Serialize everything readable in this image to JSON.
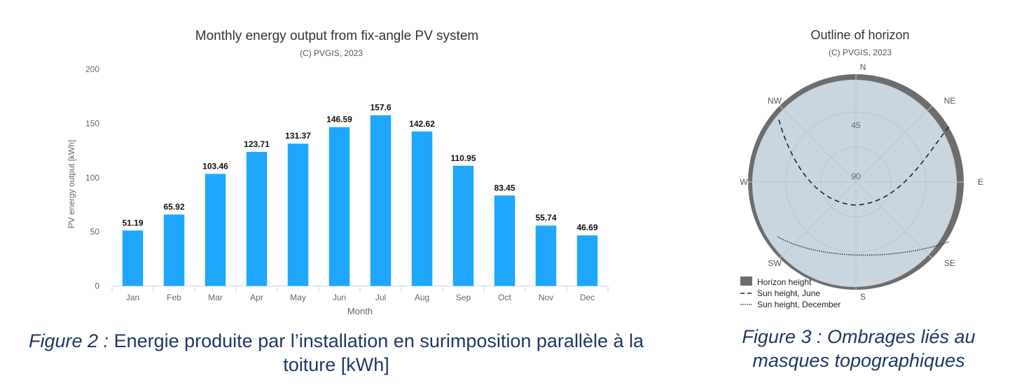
{
  "chart_data": [
    {
      "type": "bar",
      "title": "Monthly energy output from fix-angle PV system",
      "subtitle": "(C) PVGIS, 2023",
      "xlabel": "Month",
      "ylabel": "PV energy output [kWh]",
      "ylim": [
        0,
        200
      ],
      "yticks": [
        0,
        50,
        100,
        150,
        200
      ],
      "categories": [
        "Jan",
        "Feb",
        "Mar",
        "Apr",
        "May",
        "Jun",
        "Jul",
        "Aug",
        "Sep",
        "Oct",
        "Nov",
        "Dec"
      ],
      "values": [
        51.19,
        65.92,
        103.46,
        123.71,
        131.37,
        146.59,
        157.6,
        142.62,
        110.95,
        83.45,
        55.74,
        46.69
      ],
      "value_labels": [
        "51.19",
        "65.92",
        "103.46",
        "123.71",
        "131.37",
        "146.59",
        "157.6",
        "142.62",
        "110.95",
        "83.45",
        "55.74",
        "46.69"
      ],
      "bar_color": "#1ea7fd",
      "grid": false
    },
    {
      "type": "polar",
      "title": "Outline of horizon",
      "subtitle": "(C) PVGIS, 2023",
      "directions": [
        "N",
        "NE",
        "E",
        "SE",
        "S",
        "SW",
        "W",
        "NW"
      ],
      "radial_ticks": [
        "45",
        "90"
      ],
      "legend": [
        {
          "label": "Horizon height",
          "style": "filled"
        },
        {
          "label": "Sun height, June",
          "style": "dashed"
        },
        {
          "label": "Sun height, December",
          "style": "dotted"
        }
      ],
      "legend_position": "bottom-left",
      "horizon_color": "#6d6d6d",
      "sky_color": "#c9d6df"
    }
  ],
  "captions": {
    "left_prefix": "Figure 2 :",
    "left_text": " Energie produite par l’installation en surimposition parallèle à la toiture [kWh]",
    "right_text": "Figure 3 : Ombrages liés au masques topographiques"
  }
}
